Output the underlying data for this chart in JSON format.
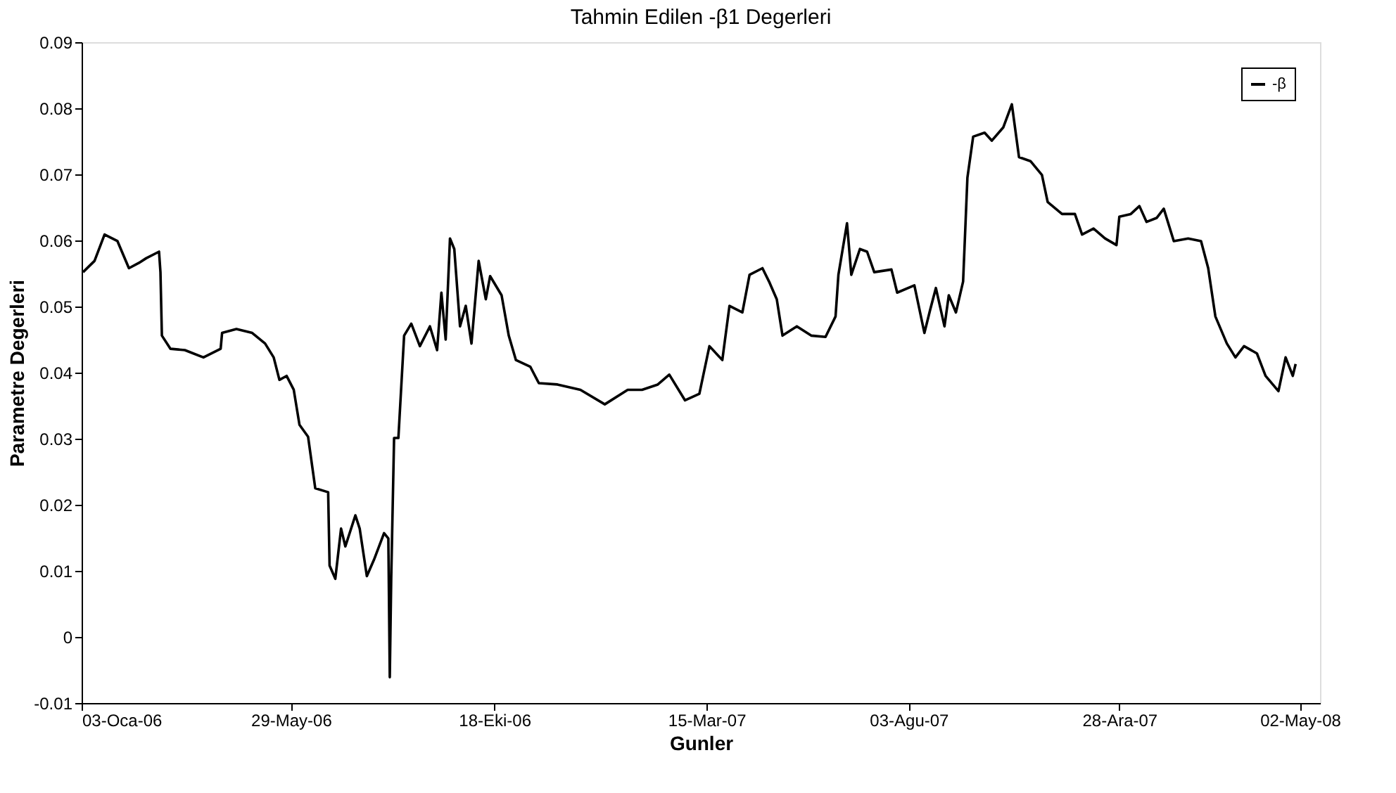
{
  "chart_data": {
    "type": "line",
    "title": "Tahmin Edilen -β1 Degerleri",
    "xlabel": "Gunler",
    "ylabel": "Parametre Degerleri",
    "x": [
      "2006-01-04",
      "2006-01-12",
      "2006-01-19",
      "2006-01-28",
      "2006-02-05",
      "2006-02-12",
      "2006-02-17",
      "2006-02-26",
      "2006-02-27",
      "2006-02-28",
      "2006-03-06",
      "2006-03-16",
      "2006-03-29",
      "2006-04-10",
      "2006-04-11",
      "2006-04-21",
      "2006-05-02",
      "2006-05-11",
      "2006-05-17",
      "2006-05-21",
      "2006-05-26",
      "2006-05-31",
      "2006-06-04",
      "2006-06-10",
      "2006-06-15",
      "2006-06-24",
      "2006-06-25",
      "2006-06-29",
      "2006-07-03",
      "2006-07-06",
      "2006-07-13",
      "2006-07-16",
      "2006-07-21",
      "2006-07-26",
      "2006-08-02",
      "2006-08-05",
      "2006-08-06",
      "2006-08-07",
      "2006-08-09",
      "2006-08-12",
      "2006-08-16",
      "2006-08-21",
      "2006-08-27",
      "2006-09-03",
      "2006-09-08",
      "2006-09-11",
      "2006-09-14",
      "2006-09-17",
      "2006-09-20",
      "2006-09-24",
      "2006-09-28",
      "2006-10-02",
      "2006-10-07",
      "2006-10-12",
      "2006-10-15",
      "2006-10-23",
      "2006-10-28",
      "2006-11-02",
      "2006-11-12",
      "2006-11-18",
      "2006-12-01",
      "2006-12-17",
      "2007-01-03",
      "2007-01-19",
      "2007-01-29",
      "2007-02-09",
      "2007-02-17",
      "2007-02-28",
      "2007-03-10",
      "2007-03-17",
      "2007-03-26",
      "2007-03-31",
      "2007-04-09",
      "2007-04-14",
      "2007-04-23",
      "2007-04-28",
      "2007-05-03",
      "2007-05-07",
      "2007-05-17",
      "2007-05-27",
      "2007-06-06",
      "2007-06-13",
      "2007-06-15",
      "2007-06-21",
      "2007-06-24",
      "2007-06-30",
      "2007-07-05",
      "2007-07-10",
      "2007-07-22",
      "2007-07-26",
      "2007-08-07",
      "2007-08-14",
      "2007-08-18",
      "2007-08-22",
      "2007-08-28",
      "2007-08-31",
      "2007-09-05",
      "2007-09-10",
      "2007-09-13",
      "2007-09-17",
      "2007-09-25",
      "2007-09-30",
      "2007-10-08",
      "2007-10-14",
      "2007-10-19",
      "2007-10-27",
      "2007-11-04",
      "2007-11-08",
      "2007-11-18",
      "2007-11-27",
      "2007-12-02",
      "2007-12-10",
      "2007-12-18",
      "2007-12-26",
      "2007-12-28",
      "2008-01-05",
      "2008-01-11",
      "2008-01-16",
      "2008-01-23",
      "2008-01-28",
      "2008-02-04",
      "2008-02-14",
      "2008-02-23",
      "2008-02-28",
      "2008-03-04",
      "2008-03-12",
      "2008-03-18",
      "2008-03-24",
      "2008-04-02",
      "2008-04-08",
      "2008-04-17",
      "2008-04-22",
      "2008-04-27",
      "2008-04-29"
    ],
    "series": [
      {
        "name": "-β",
        "color": "#000000",
        "values": [
          0.0552,
          0.0569,
          0.0609,
          0.0599,
          0.0558,
          0.0566,
          0.0573,
          0.0583,
          0.0552,
          0.0456,
          0.0436,
          0.0434,
          0.0423,
          0.0436,
          0.046,
          0.0466,
          0.046,
          0.0444,
          0.0423,
          0.0389,
          0.0395,
          0.0374,
          0.0321,
          0.0303,
          0.0225,
          0.0219,
          0.0108,
          0.0088,
          0.0164,
          0.0137,
          0.0184,
          0.0164,
          0.0092,
          0.0117,
          0.0157,
          0.0149,
          -0.0061,
          0.0088,
          0.0301,
          0.0301,
          0.0456,
          0.0474,
          0.044,
          0.047,
          0.0434,
          0.0521,
          0.045,
          0.0603,
          0.0587,
          0.047,
          0.0501,
          0.0444,
          0.0569,
          0.0511,
          0.0546,
          0.0517,
          0.0456,
          0.0419,
          0.0409,
          0.0384,
          0.0382,
          0.0374,
          0.0352,
          0.0374,
          0.0374,
          0.0382,
          0.0397,
          0.0358,
          0.0368,
          0.044,
          0.0419,
          0.0501,
          0.0491,
          0.0548,
          0.0558,
          0.0536,
          0.0511,
          0.0456,
          0.047,
          0.0456,
          0.0454,
          0.0485,
          0.0548,
          0.0626,
          0.0548,
          0.0587,
          0.0583,
          0.0552,
          0.0556,
          0.0521,
          0.0532,
          0.046,
          0.0495,
          0.0528,
          0.047,
          0.0517,
          0.0491,
          0.0538,
          0.0695,
          0.0757,
          0.0763,
          0.0751,
          0.0771,
          0.0806,
          0.0726,
          0.072,
          0.0699,
          0.0658,
          0.064,
          0.064,
          0.0609,
          0.0618,
          0.0603,
          0.0593,
          0.0636,
          0.064,
          0.0652,
          0.0628,
          0.0634,
          0.0648,
          0.0599,
          0.0603,
          0.0599,
          0.0558,
          0.0485,
          0.0444,
          0.0423,
          0.044,
          0.0429,
          0.0395,
          0.0372,
          0.0423,
          0.0395,
          0.0413
        ]
      }
    ],
    "xlim": [
      "2006-01-03",
      "2008-05-16"
    ],
    "xticks": [
      {
        "value": "2006-01-03",
        "label": "03-Oca-06"
      },
      {
        "value": "2006-05-29",
        "label": "29-May-06"
      },
      {
        "value": "2006-10-18",
        "label": "18-Eki-06"
      },
      {
        "value": "2007-03-15",
        "label": "15-Mar-07"
      },
      {
        "value": "2007-08-03",
        "label": "03-Agu-07"
      },
      {
        "value": "2007-12-28",
        "label": "28-Ara-07"
      },
      {
        "value": "2008-05-02",
        "label": "02-May-08"
      }
    ],
    "ylim": [
      -0.01,
      0.09
    ],
    "yticks": [
      -0.01,
      0,
      0.01,
      0.02,
      0.03,
      0.04,
      0.05,
      0.06,
      0.07,
      0.08,
      0.09
    ],
    "grid": false,
    "legend": "top right",
    "line_style": "solid",
    "marker": "none"
  }
}
